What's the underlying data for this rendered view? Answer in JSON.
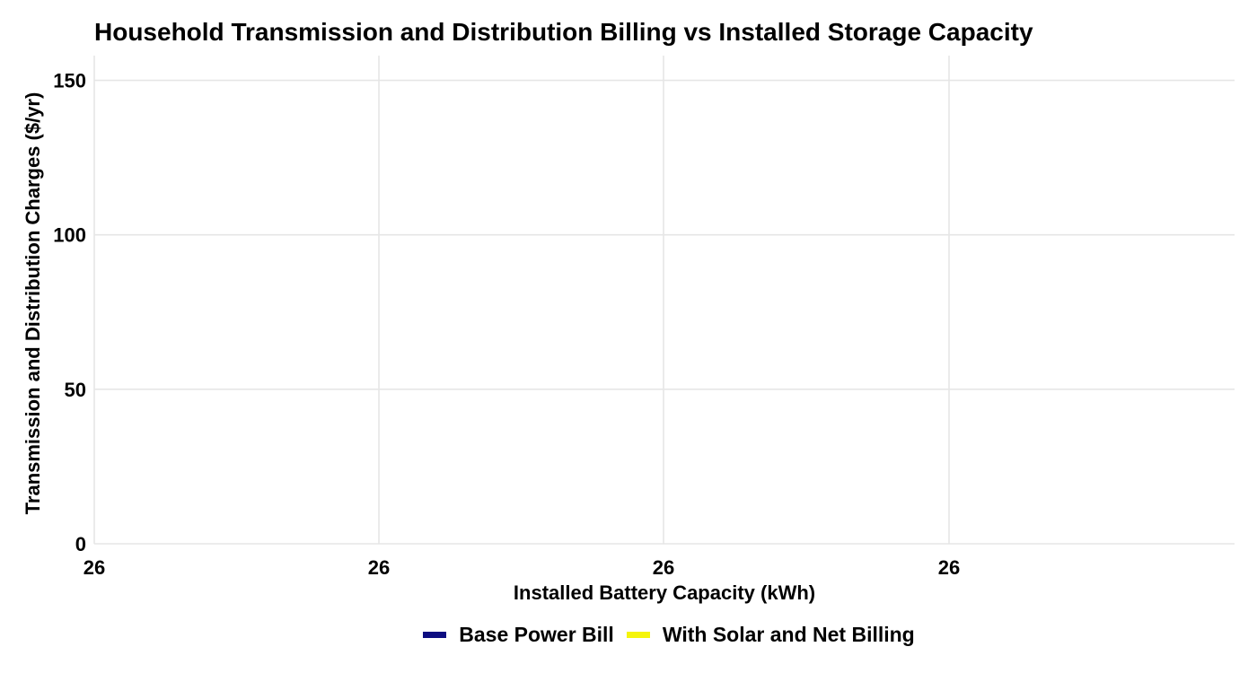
{
  "chart_data": {
    "type": "line",
    "title": "Household Transmission and Distribution Billing vs Installed Storage Capacity",
    "xlabel": "Installed Battery Capacity (kWh)",
    "ylabel": "Transmission and Distribution Charges ($/yr)",
    "x_tick_labels": [
      "26",
      "26",
      "26",
      "26"
    ],
    "y_ticks": [
      0,
      50,
      100,
      150
    ],
    "ylim": [
      0,
      158
    ],
    "grid": true,
    "legend_position": "bottom",
    "series": [
      {
        "name": "Base Power Bill",
        "color": "#0d0d80",
        "values": []
      },
      {
        "name": "With Solar and Net Billing",
        "color": "#f5f50a",
        "values": []
      }
    ]
  }
}
